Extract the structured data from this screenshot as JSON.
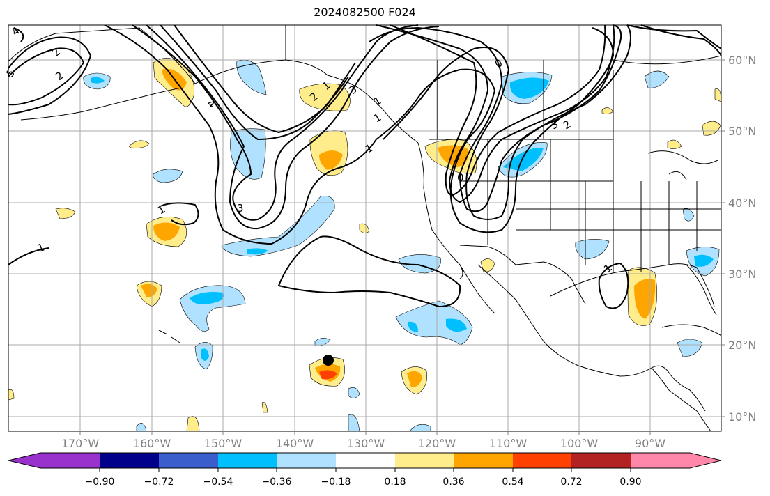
{
  "title": "2024082500 F024",
  "map": {
    "lon_ticks": [
      "170°W",
      "160°W",
      "150°W",
      "140°W",
      "130°W",
      "120°W",
      "110°W",
      "100°W",
      "90°W"
    ],
    "lat_ticks": [
      "60°N",
      "50°N",
      "40°N",
      "30°N",
      "20°N",
      "10°N"
    ],
    "contour_labels": [
      "4",
      "2",
      "2",
      "5",
      "4",
      "3",
      "2",
      "1",
      "1",
      "1",
      "1",
      "3",
      "1",
      "1",
      "0",
      "3",
      "2",
      "1",
      "0"
    ],
    "point_marker": "black-dot"
  },
  "colorbar": {
    "tick_labels": [
      "−0.90",
      "−0.72",
      "−0.54",
      "−0.36",
      "−0.18",
      "0.18",
      "0.36",
      "0.54",
      "0.72",
      "0.90"
    ],
    "colors": [
      "#9932cc",
      "#00008b",
      "#3a5fcd",
      "#00bfff",
      "#b0e2ff",
      "#ffffff",
      "#ffec8b",
      "#ffa500",
      "#ff4000",
      "#b22222",
      "#ff88aa"
    ]
  },
  "colors": {
    "neg_light": "#b0e2ff",
    "neg_mid": "#00bfff",
    "pos_light": "#ffec8b",
    "pos_mid": "#ffa500",
    "pos_strong": "#ff4000",
    "grid": "#aaaaaa",
    "axis_text": "#808080"
  }
}
